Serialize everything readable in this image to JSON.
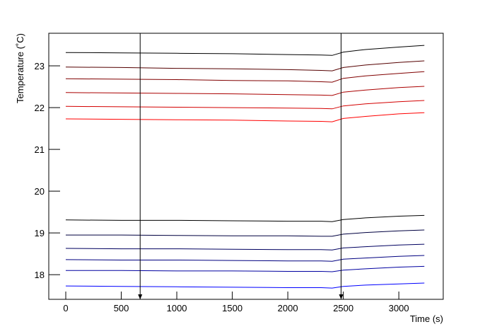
{
  "chart_data": {
    "type": "line",
    "x_label": "Time (s)",
    "y_label": "Temperature (˚C)",
    "x": [
      0,
      500,
      1000,
      1500,
      2000,
      2300,
      2400,
      2500,
      2700,
      3000,
      3230
    ],
    "series": [
      {
        "color": "#000000",
        "values": [
          23.32,
          23.31,
          23.3,
          23.29,
          23.27,
          23.26,
          23.25,
          23.33,
          23.39,
          23.45,
          23.49
        ]
      },
      {
        "color": "#550000",
        "values": [
          22.97,
          22.96,
          22.94,
          22.93,
          22.91,
          22.89,
          22.88,
          22.96,
          23.02,
          23.08,
          23.12
        ]
      },
      {
        "color": "#800000",
        "values": [
          22.69,
          22.68,
          22.67,
          22.65,
          22.64,
          22.62,
          22.61,
          22.7,
          22.76,
          22.82,
          22.86
        ]
      },
      {
        "color": "#aa0000",
        "values": [
          22.36,
          22.35,
          22.34,
          22.33,
          22.31,
          22.3,
          22.29,
          22.37,
          22.42,
          22.48,
          22.51
        ]
      },
      {
        "color": "#d40000",
        "values": [
          22.03,
          22.02,
          22.01,
          22.0,
          21.99,
          21.98,
          21.97,
          22.04,
          22.09,
          22.14,
          22.17
        ]
      },
      {
        "color": "#ff0000",
        "values": [
          21.73,
          21.72,
          21.71,
          21.7,
          21.68,
          21.67,
          21.66,
          21.74,
          21.79,
          21.85,
          21.88
        ]
      },
      {
        "color": "#000000",
        "values": [
          19.31,
          19.3,
          19.3,
          19.29,
          19.28,
          19.28,
          19.27,
          19.32,
          19.36,
          19.4,
          19.42
        ]
      },
      {
        "color": "#000040",
        "values": [
          18.95,
          18.95,
          18.94,
          18.93,
          18.93,
          18.92,
          18.92,
          18.97,
          19.01,
          19.05,
          19.07
        ]
      },
      {
        "color": "#000060",
        "values": [
          18.63,
          18.62,
          18.62,
          18.61,
          18.6,
          18.6,
          18.59,
          18.64,
          18.67,
          18.71,
          18.73
        ]
      },
      {
        "color": "#000080",
        "values": [
          18.36,
          18.35,
          18.35,
          18.34,
          18.33,
          18.33,
          18.32,
          18.37,
          18.4,
          18.44,
          18.46
        ]
      },
      {
        "color": "#0000a0",
        "values": [
          18.1,
          18.1,
          18.09,
          18.09,
          18.08,
          18.08,
          18.07,
          18.11,
          18.14,
          18.18,
          18.2
        ]
      },
      {
        "color": "#0000ff",
        "values": [
          17.73,
          17.72,
          17.71,
          17.7,
          17.69,
          17.69,
          17.68,
          17.72,
          17.75,
          17.78,
          17.8
        ]
      }
    ],
    "vlines": [
      670,
      2480
    ],
    "xlim": [
      -153,
      3400
    ],
    "ylim": [
      17.41,
      23.78
    ],
    "xticks": [
      0,
      500,
      1000,
      1500,
      2000,
      2500,
      3000
    ],
    "yticks": [
      18,
      19,
      20,
      21,
      22,
      23
    ]
  }
}
